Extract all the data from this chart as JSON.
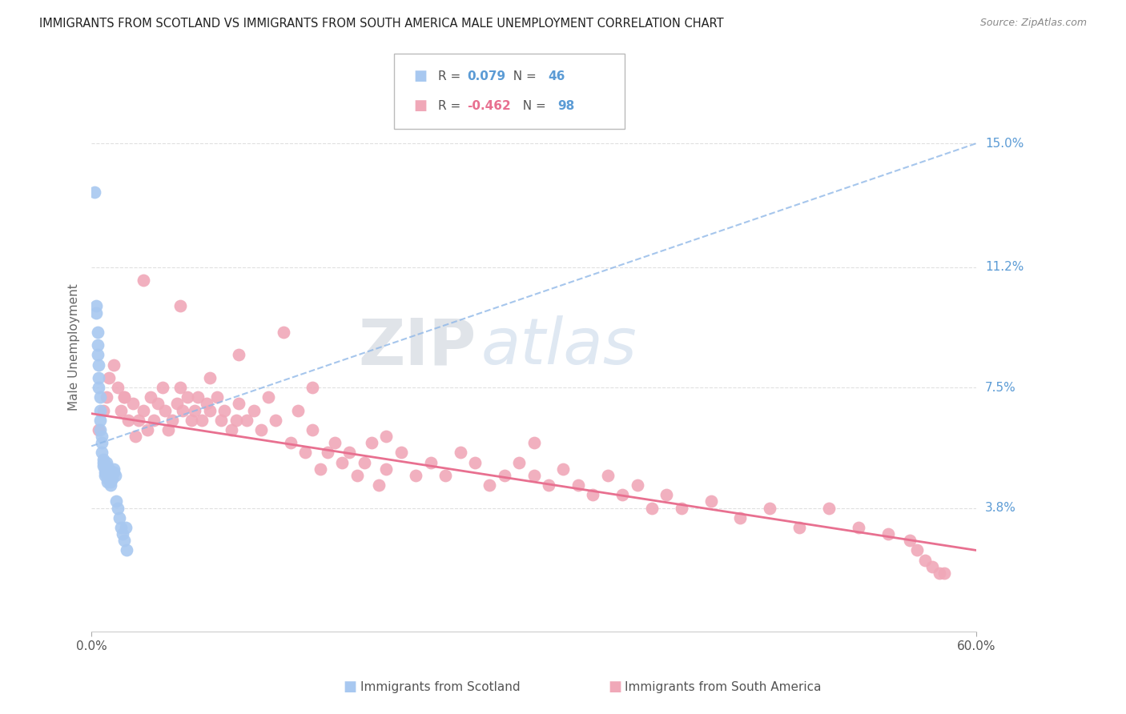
{
  "title": "IMMIGRANTS FROM SCOTLAND VS IMMIGRANTS FROM SOUTH AMERICA MALE UNEMPLOYMENT CORRELATION CHART",
  "source": "Source: ZipAtlas.com",
  "ylabel": "Male Unemployment",
  "watermark_zip": "ZIP",
  "watermark_atlas": "atlas",
  "xlim": [
    0.0,
    0.6
  ],
  "ylim": [
    0.0,
    0.175
  ],
  "ytick_positions": [
    0.038,
    0.075,
    0.112,
    0.15
  ],
  "ytick_labels": [
    "3.8%",
    "7.5%",
    "11.2%",
    "15.0%"
  ],
  "legend_scotland_r": "0.079",
  "legend_scotland_n": "46",
  "legend_southamerica_r": "-0.462",
  "legend_southamerica_n": "98",
  "scotland_color": "#a8c8f0",
  "southamerica_color": "#f0a8b8",
  "scotland_line_color": "#90b8e8",
  "southamerica_line_color": "#e87090",
  "background_color": "#ffffff",
  "grid_color": "#e0e0e0",
  "scotland_x": [
    0.002,
    0.003,
    0.003,
    0.004,
    0.004,
    0.004,
    0.005,
    0.005,
    0.005,
    0.006,
    0.006,
    0.006,
    0.006,
    0.007,
    0.007,
    0.007,
    0.008,
    0.008,
    0.008,
    0.009,
    0.009,
    0.009,
    0.01,
    0.01,
    0.01,
    0.011,
    0.011,
    0.011,
    0.012,
    0.012,
    0.013,
    0.013,
    0.013,
    0.014,
    0.014,
    0.015,
    0.015,
    0.016,
    0.017,
    0.018,
    0.019,
    0.02,
    0.021,
    0.022,
    0.023,
    0.024
  ],
  "scotland_y": [
    0.135,
    0.1,
    0.098,
    0.092,
    0.088,
    0.085,
    0.082,
    0.078,
    0.075,
    0.072,
    0.068,
    0.065,
    0.062,
    0.06,
    0.058,
    0.055,
    0.053,
    0.052,
    0.051,
    0.05,
    0.049,
    0.048,
    0.052,
    0.051,
    0.049,
    0.048,
    0.047,
    0.046,
    0.05,
    0.049,
    0.048,
    0.046,
    0.045,
    0.048,
    0.047,
    0.05,
    0.049,
    0.048,
    0.04,
    0.038,
    0.035,
    0.032,
    0.03,
    0.028,
    0.032,
    0.025
  ],
  "southamerica_x": [
    0.005,
    0.008,
    0.01,
    0.012,
    0.015,
    0.018,
    0.02,
    0.022,
    0.025,
    0.028,
    0.03,
    0.032,
    0.035,
    0.038,
    0.04,
    0.042,
    0.045,
    0.048,
    0.05,
    0.052,
    0.055,
    0.058,
    0.06,
    0.062,
    0.065,
    0.068,
    0.07,
    0.072,
    0.075,
    0.078,
    0.08,
    0.085,
    0.088,
    0.09,
    0.095,
    0.098,
    0.1,
    0.105,
    0.11,
    0.115,
    0.12,
    0.125,
    0.13,
    0.135,
    0.14,
    0.145,
    0.15,
    0.155,
    0.16,
    0.165,
    0.17,
    0.175,
    0.18,
    0.185,
    0.19,
    0.195,
    0.2,
    0.21,
    0.22,
    0.23,
    0.24,
    0.25,
    0.26,
    0.27,
    0.28,
    0.29,
    0.3,
    0.31,
    0.32,
    0.33,
    0.34,
    0.35,
    0.36,
    0.37,
    0.38,
    0.39,
    0.4,
    0.42,
    0.44,
    0.46,
    0.48,
    0.5,
    0.52,
    0.54,
    0.555,
    0.56,
    0.565,
    0.57,
    0.575,
    0.578,
    0.022,
    0.035,
    0.06,
    0.08,
    0.1,
    0.15,
    0.2,
    0.3
  ],
  "southamerica_y": [
    0.062,
    0.068,
    0.072,
    0.078,
    0.082,
    0.075,
    0.068,
    0.072,
    0.065,
    0.07,
    0.06,
    0.065,
    0.068,
    0.062,
    0.072,
    0.065,
    0.07,
    0.075,
    0.068,
    0.062,
    0.065,
    0.07,
    0.075,
    0.068,
    0.072,
    0.065,
    0.068,
    0.072,
    0.065,
    0.07,
    0.068,
    0.072,
    0.065,
    0.068,
    0.062,
    0.065,
    0.07,
    0.065,
    0.068,
    0.062,
    0.072,
    0.065,
    0.092,
    0.058,
    0.068,
    0.055,
    0.062,
    0.05,
    0.055,
    0.058,
    0.052,
    0.055,
    0.048,
    0.052,
    0.058,
    0.045,
    0.05,
    0.055,
    0.048,
    0.052,
    0.048,
    0.055,
    0.052,
    0.045,
    0.048,
    0.052,
    0.048,
    0.045,
    0.05,
    0.045,
    0.042,
    0.048,
    0.042,
    0.045,
    0.038,
    0.042,
    0.038,
    0.04,
    0.035,
    0.038,
    0.032,
    0.038,
    0.032,
    0.03,
    0.028,
    0.025,
    0.022,
    0.02,
    0.018,
    0.018,
    0.072,
    0.108,
    0.1,
    0.078,
    0.085,
    0.075,
    0.06,
    0.058
  ]
}
